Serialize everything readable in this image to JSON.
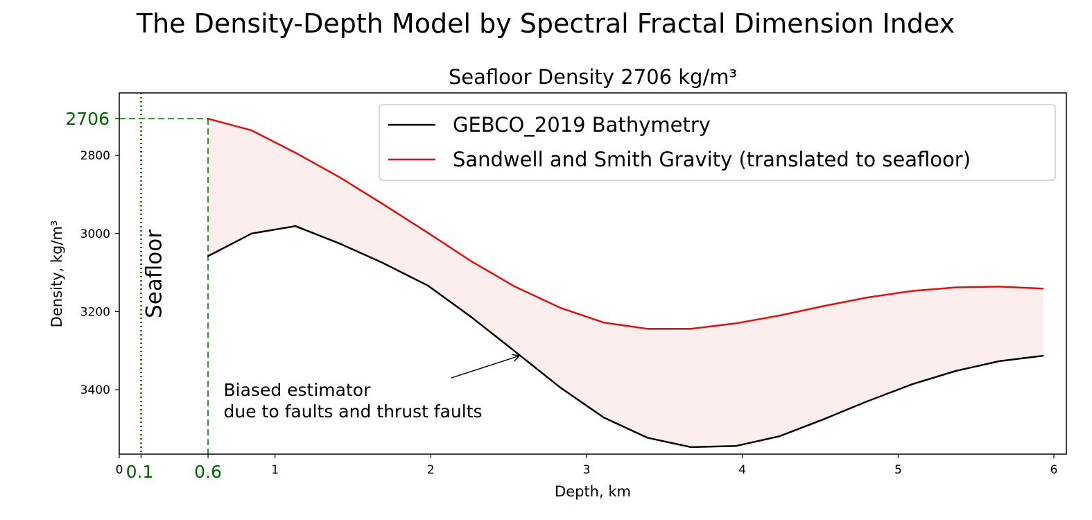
{
  "suptitle": "The Density-Depth Model by Spectral Fractal Dimension Index",
  "chart_data": {
    "type": "line",
    "title": "Seafloor Density 2706 kg/m³",
    "xlabel": "Depth, km",
    "ylabel": "Density, kg/m³",
    "xlim": [
      0,
      6.08
    ],
    "ylim": [
      3565,
      2640
    ],
    "y_inverted": true,
    "grid": false,
    "legend_position": "upper right",
    "xticks": [
      "0",
      "1",
      "2",
      "3",
      "4",
      "5",
      "6"
    ],
    "xtick_values": [
      0,
      1,
      2,
      3,
      4,
      5,
      6
    ],
    "yticks": [
      "2800",
      "3000",
      "3200",
      "3400"
    ],
    "ytick_values": [
      2800,
      3000,
      3200,
      3400
    ],
    "highlight_xticks": [
      "0.1",
      "0.6"
    ],
    "highlight_xtick_values": [
      0.14,
      0.57
    ],
    "highlight_yticks": [
      "2706"
    ],
    "highlight_ytick_values": [
      2706
    ],
    "series": [
      {
        "name": "GEBCO_2019 Bathymetry",
        "color": "#000000",
        "x": [
          0.57,
          0.85,
          1.13,
          1.41,
          1.69,
          1.98,
          2.26,
          2.54,
          2.83,
          3.11,
          3.39,
          3.67,
          3.96,
          4.24,
          4.52,
          4.8,
          5.09,
          5.37,
          5.65,
          5.93
        ],
        "y": [
          3058,
          3000,
          2981,
          3025,
          3075,
          3133,
          3214,
          3302,
          3394,
          3471,
          3523,
          3547,
          3544,
          3519,
          3476,
          3430,
          3386,
          3352,
          3327,
          3313
        ]
      },
      {
        "name": "Sandwell and Smith Gravity (translated to seafloor)",
        "color": "#dd1111",
        "x": [
          0.57,
          0.85,
          1.13,
          1.41,
          1.69,
          1.98,
          2.26,
          2.54,
          2.83,
          3.11,
          3.39,
          3.67,
          3.96,
          4.24,
          4.52,
          4.8,
          5.09,
          5.37,
          5.65,
          5.93
        ],
        "y": [
          2706,
          2736,
          2793,
          2855,
          2924,
          2998,
          3071,
          3136,
          3190,
          3228,
          3244,
          3244,
          3230,
          3210,
          3186,
          3164,
          3147,
          3138,
          3136,
          3141
        ]
      }
    ],
    "fill_between": {
      "color": "#fdeeee"
    },
    "reference_lines": [
      {
        "orientation": "vertical",
        "x": 0.14,
        "style": "dotted",
        "color": "#006400",
        "label": "Seafloor"
      },
      {
        "orientation": "vertical",
        "x": 0.57,
        "y_from": 2706,
        "style": "dashed",
        "color": "#3a8a3a"
      },
      {
        "orientation": "horizontal",
        "y": 2706,
        "x_to": 0.57,
        "style": "dashed",
        "color": "#3a8a3a"
      }
    ],
    "annotations": [
      {
        "lines": [
          "Biased estimator",
          "due to faults and thrust faults"
        ],
        "text_x": 0.67,
        "text_y": 3400,
        "arrow_from_x": 2.13,
        "arrow_from_y": 3370,
        "arrow_to_x": 2.57,
        "arrow_to_y": 3313
      }
    ]
  }
}
